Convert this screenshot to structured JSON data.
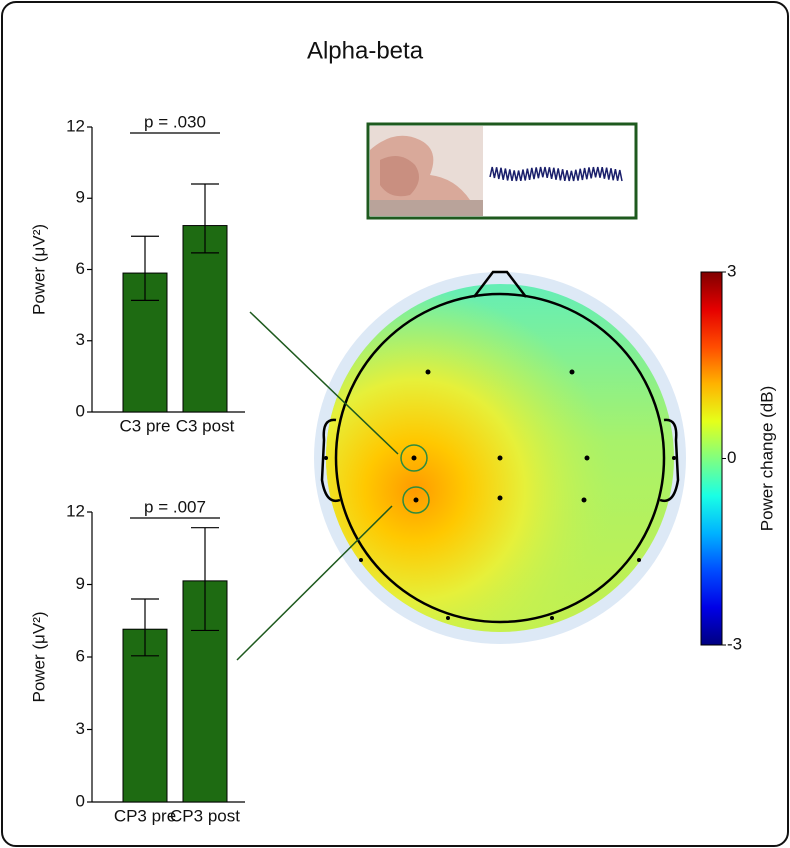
{
  "title": "Alpha-beta",
  "chart_data": [
    {
      "type": "bar",
      "categories": [
        "C3 pre",
        "C3 post"
      ],
      "values": [
        5.85,
        7.85
      ],
      "error_low": [
        1.15,
        1.15
      ],
      "error_high": [
        1.55,
        1.75
      ],
      "color": "#1e6b12",
      "ylabel": "Power (μV²)",
      "annotation": "p = .030",
      "ylim": [
        0,
        12
      ],
      "yticks": [
        0,
        3,
        6,
        9,
        12
      ]
    },
    {
      "type": "bar",
      "categories": [
        "CP3 pre",
        "CP3 post"
      ],
      "values": [
        7.15,
        9.15
      ],
      "error_low": [
        1.1,
        2.05
      ],
      "error_high": [
        1.25,
        2.2
      ],
      "color": "#1e6b12",
      "ylabel": "Power (μV²)",
      "annotation": "p = .007",
      "ylim": [
        0,
        12
      ],
      "yticks": [
        0,
        3,
        6,
        9,
        12
      ]
    },
    {
      "type": "colorbar",
      "label": "Power change (dB)",
      "clim": [
        -3,
        3
      ],
      "ticks": [
        -3,
        0,
        3
      ],
      "colormap": "jet"
    }
  ]
}
